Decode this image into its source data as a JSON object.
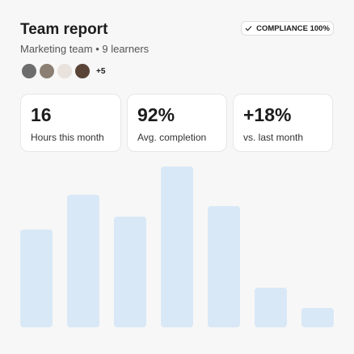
{
  "header": {
    "title": "Team report",
    "subtitle": "Marketing team • 9 learners",
    "badge": "COMPLIANCE 100%",
    "extra_members": "+5"
  },
  "stats": [
    {
      "value": "16",
      "label": "Hours this month"
    },
    {
      "value": "92%",
      "label": "Avg. completion"
    },
    {
      "value": "+18%",
      "label": "vs. last month"
    }
  ],
  "chart_data": {
    "type": "bar",
    "values": [
      121,
      164,
      137,
      199,
      150,
      49,
      24
    ],
    "color": "#d9e8f6"
  }
}
